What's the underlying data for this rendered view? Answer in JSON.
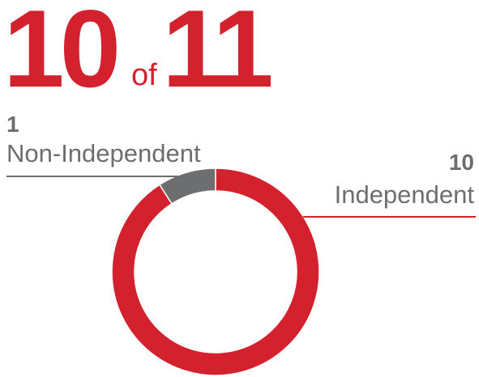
{
  "headline": {
    "count": "10",
    "connector": "of",
    "total": "11",
    "color": "#d3222e"
  },
  "chart_data": {
    "type": "donut",
    "categories": [
      "Non-Independent",
      "Independent"
    ],
    "values": [
      1,
      10
    ],
    "colors": [
      "#6d6e70",
      "#d3222e"
    ]
  }
}
